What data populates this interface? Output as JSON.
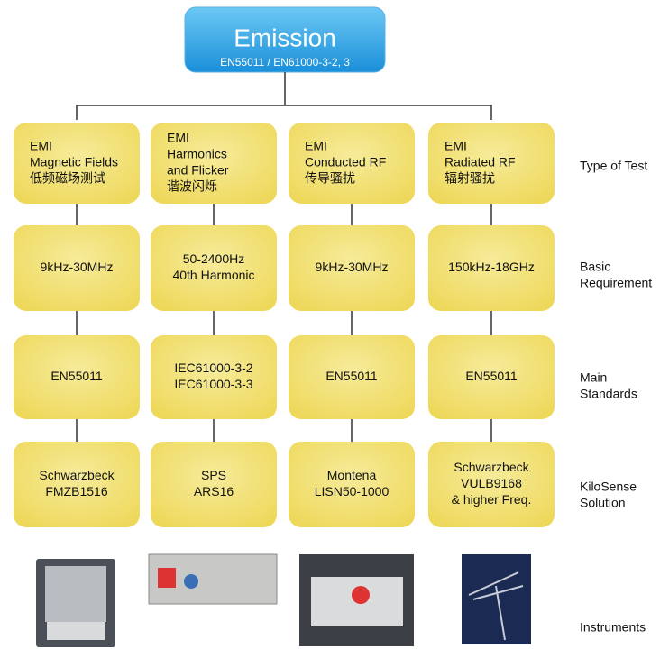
{
  "root": {
    "title": "Emission",
    "subtitle": "EN55011 / EN61000-3-2, 3"
  },
  "columns": [
    {
      "test_type": [
        "EMI",
        "Magnetic Fields",
        "低频磁场测试"
      ],
      "requirement": [
        "9kHz-30MHz"
      ],
      "standards": [
        "EN55011"
      ],
      "solution": [
        "Schwarzbeck",
        "FMZB1516"
      ]
    },
    {
      "test_type": [
        "EMI",
        "Harmonics",
        "and Flicker",
        "谐波闪烁"
      ],
      "requirement": [
        "50-2400Hz",
        "40th Harmonic"
      ],
      "standards": [
        "IEC61000-3-2",
        "IEC61000-3-3"
      ],
      "solution": [
        "SPS",
        "ARS16"
      ]
    },
    {
      "test_type": [
        "EMI",
        "Conducted RF",
        "传导骚扰"
      ],
      "requirement": [
        "9kHz-30MHz"
      ],
      "standards": [
        "EN55011"
      ],
      "solution": [
        "Montena",
        "LISN50-1000"
      ]
    },
    {
      "test_type": [
        "EMI",
        "Radiated RF",
        "辐射骚扰"
      ],
      "requirement": [
        "150kHz-18GHz"
      ],
      "standards": [
        "EN55011"
      ],
      "solution": [
        "Schwarzbeck",
        "VULB9168",
        "& higher Freq."
      ]
    }
  ],
  "row_labels": {
    "test_type": [
      "Type of Test"
    ],
    "requirement": [
      "Basic",
      "Requirement"
    ],
    "standards": [
      "Main",
      "Standards"
    ],
    "solution": [
      "KiloSense",
      "Solution"
    ],
    "instruments": [
      "Instruments"
    ]
  }
}
